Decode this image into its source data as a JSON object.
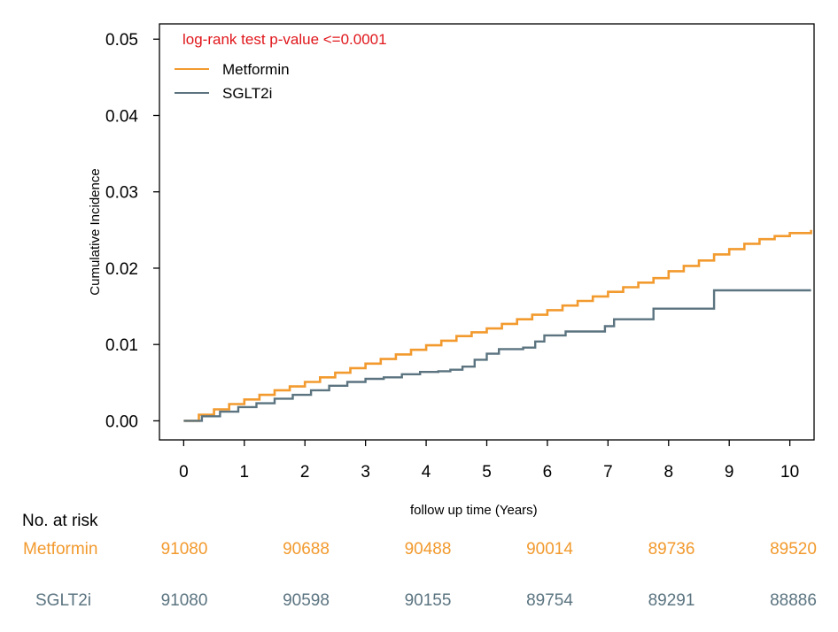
{
  "chart_data": {
    "type": "line",
    "title": "",
    "annotation": "log-rank test p-value <=0.0001",
    "xlabel": "follow up time (Years)",
    "ylabel": "Cumulative Incidence",
    "xlim": [
      -0.4,
      10.4
    ],
    "ylim": [
      -0.0025,
      0.052
    ],
    "x_ticks": [
      0,
      1,
      2,
      3,
      4,
      5,
      6,
      7,
      8,
      9,
      10
    ],
    "y_ticks": [
      0.0,
      0.01,
      0.02,
      0.03,
      0.04,
      0.05
    ],
    "y_tick_labels": [
      "0.00",
      "0.01",
      "0.02",
      "0.03",
      "0.04",
      "0.05"
    ],
    "grid": false,
    "legend_position": "top-left",
    "series": [
      {
        "name": "Metformin",
        "color": "#f29a2e",
        "x": [
          0,
          0.25,
          0.5,
          0.75,
          1.0,
          1.25,
          1.5,
          1.75,
          2.0,
          2.25,
          2.5,
          2.75,
          3.0,
          3.25,
          3.5,
          3.75,
          4.0,
          4.25,
          4.5,
          4.75,
          5.0,
          5.25,
          5.5,
          5.75,
          6.0,
          6.25,
          6.5,
          6.75,
          7.0,
          7.25,
          7.5,
          7.75,
          8.0,
          8.25,
          8.5,
          8.75,
          9.0,
          9.25,
          9.5,
          9.75,
          10.0,
          10.35
        ],
        "y": [
          0.0,
          0.0008,
          0.0015,
          0.0022,
          0.0028,
          0.0034,
          0.004,
          0.0045,
          0.0051,
          0.0057,
          0.0063,
          0.0069,
          0.0075,
          0.0081,
          0.0087,
          0.0093,
          0.0099,
          0.0105,
          0.0111,
          0.0116,
          0.0121,
          0.0127,
          0.0133,
          0.0139,
          0.0145,
          0.0151,
          0.0157,
          0.0163,
          0.0169,
          0.0175,
          0.0181,
          0.0187,
          0.0196,
          0.0203,
          0.021,
          0.0218,
          0.0225,
          0.0232,
          0.0238,
          0.0242,
          0.0246,
          0.025
        ]
      },
      {
        "name": "SGLT2i",
        "color": "#5b7480",
        "x": [
          0,
          0.3,
          0.6,
          0.9,
          1.2,
          1.5,
          1.8,
          2.1,
          2.4,
          2.7,
          3.0,
          3.3,
          3.6,
          3.9,
          4.2,
          4.4,
          4.6,
          4.8,
          5.0,
          5.2,
          5.6,
          5.8,
          5.95,
          6.3,
          6.5,
          6.7,
          6.95,
          7.1,
          7.5,
          7.75,
          8.2,
          8.75,
          9.3,
          10.35
        ],
        "y": [
          0.0,
          0.0006,
          0.0012,
          0.0018,
          0.0023,
          0.0029,
          0.0034,
          0.004,
          0.0046,
          0.0051,
          0.0055,
          0.0057,
          0.0061,
          0.0064,
          0.0065,
          0.0067,
          0.0071,
          0.008,
          0.0088,
          0.0094,
          0.0096,
          0.0104,
          0.0112,
          0.0117,
          0.0117,
          0.0117,
          0.0124,
          0.0133,
          0.0133,
          0.0147,
          0.0147,
          0.0171,
          0.0171,
          0.0171
        ]
      }
    ],
    "risk_table": {
      "title": "No. at risk",
      "timepoints": [
        0,
        2,
        4,
        6,
        8,
        10
      ],
      "rows": [
        {
          "name": "Metformin",
          "color": "#f29a2e",
          "values": [
            "91080",
            "90688",
            "90488",
            "90014",
            "89736",
            "89520"
          ]
        },
        {
          "name": "SGLT2i",
          "color": "#5b7480",
          "values": [
            "91080",
            "90598",
            "90155",
            "89754",
            "89291",
            "88886"
          ]
        }
      ]
    }
  }
}
